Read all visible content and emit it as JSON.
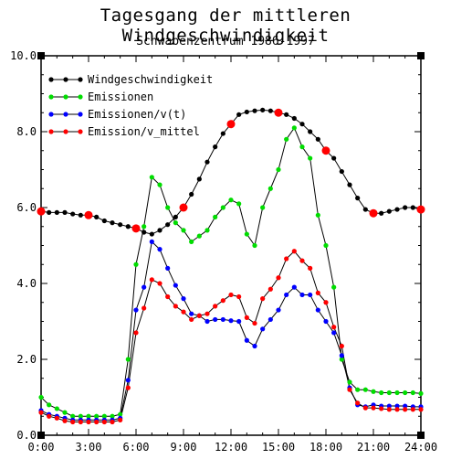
{
  "chart_data": {
    "type": "line",
    "title": "Tagesgang der mittleren Windgeschwindigkeit",
    "subtitle": "Schwabenzentrum 1986-1997",
    "xlabel": "",
    "ylabel": "",
    "xlim": [
      0,
      24
    ],
    "ylim": [
      0,
      10
    ],
    "x_ticks": [
      "0:00",
      "3:00",
      "6:00",
      "9:00",
      "12:00",
      "15:00",
      "18:00",
      "21:00",
      "24:00"
    ],
    "y_ticks": [
      "0.0",
      "2.0",
      "4.0",
      "6.0",
      "8.0",
      "10.0"
    ],
    "grid": false,
    "legend_position": "top-left",
    "x": [
      0,
      0.5,
      1,
      1.5,
      2,
      2.5,
      3,
      3.5,
      4,
      4.5,
      5,
      5.5,
      6,
      6.5,
      7,
      7.5,
      8,
      8.5,
      9,
      9.5,
      10,
      10.5,
      11,
      11.5,
      12,
      12.5,
      13,
      13.5,
      14,
      14.5,
      15,
      15.5,
      16,
      16.5,
      17,
      17.5,
      18,
      18.5,
      19,
      19.5,
      20,
      20.5,
      21,
      21.5,
      22,
      22.5,
      23,
      23.5,
      24
    ],
    "series": [
      {
        "name": "Windgeschwindigkeit",
        "color": "#000000",
        "values": [
          5.9,
          5.87,
          5.87,
          5.87,
          5.83,
          5.8,
          5.8,
          5.75,
          5.65,
          5.6,
          5.55,
          5.5,
          5.45,
          5.35,
          5.3,
          5.4,
          5.55,
          5.75,
          6.0,
          6.35,
          6.75,
          7.2,
          7.6,
          7.95,
          8.2,
          8.45,
          8.52,
          8.55,
          8.57,
          8.55,
          8.5,
          8.45,
          8.35,
          8.2,
          8.0,
          7.8,
          7.5,
          7.3,
          6.95,
          6.6,
          6.25,
          5.95,
          5.85,
          5.85,
          5.9,
          5.95,
          6.0,
          6.0,
          5.95
        ]
      },
      {
        "name": "Emissionen",
        "color": "#00dd00",
        "values": [
          1.0,
          0.8,
          0.7,
          0.6,
          0.5,
          0.5,
          0.5,
          0.5,
          0.5,
          0.5,
          0.55,
          2.0,
          4.5,
          5.5,
          6.8,
          6.6,
          6.0,
          5.6,
          5.4,
          5.1,
          5.25,
          5.4,
          5.75,
          6.0,
          6.2,
          6.1,
          5.3,
          5.0,
          6.0,
          6.5,
          7.0,
          7.8,
          8.1,
          7.6,
          7.3,
          5.8,
          5.0,
          3.9,
          2.0,
          1.4,
          1.2,
          1.2,
          1.15,
          1.12,
          1.12,
          1.12,
          1.12,
          1.12,
          1.1
        ]
      },
      {
        "name": "Emissionen/v(t)",
        "color": "#0000ff",
        "values": [
          0.65,
          0.55,
          0.5,
          0.45,
          0.4,
          0.4,
          0.4,
          0.4,
          0.4,
          0.4,
          0.45,
          1.45,
          3.3,
          3.9,
          5.1,
          4.9,
          4.4,
          3.95,
          3.6,
          3.2,
          3.15,
          3.0,
          3.05,
          3.05,
          3.02,
          3.0,
          2.5,
          2.35,
          2.8,
          3.05,
          3.3,
          3.7,
          3.9,
          3.7,
          3.7,
          3.3,
          3.0,
          2.7,
          2.1,
          1.25,
          0.8,
          0.75,
          0.8,
          0.77,
          0.77,
          0.77,
          0.77,
          0.75,
          0.75
        ]
      },
      {
        "name": "Emission/v_mittel",
        "color": "#ff0000",
        "values": [
          0.6,
          0.5,
          0.45,
          0.38,
          0.35,
          0.35,
          0.35,
          0.35,
          0.35,
          0.35,
          0.4,
          1.25,
          2.7,
          3.35,
          4.1,
          4.0,
          3.65,
          3.4,
          3.25,
          3.05,
          3.15,
          3.2,
          3.4,
          3.55,
          3.7,
          3.65,
          3.1,
          2.95,
          3.6,
          3.85,
          4.15,
          4.65,
          4.85,
          4.6,
          4.4,
          3.75,
          3.5,
          2.85,
          2.35,
          1.2,
          0.85,
          0.72,
          0.72,
          0.7,
          0.68,
          0.68,
          0.68,
          0.68,
          0.68
        ]
      }
    ],
    "big_markers": {
      "series": "Windgeschwindigkeit",
      "color": "#ff0000",
      "x": [
        0,
        3,
        6,
        9,
        12,
        15,
        18,
        21,
        24
      ],
      "values": [
        5.9,
        5.8,
        5.45,
        6.0,
        8.2,
        8.5,
        7.5,
        5.85,
        5.95
      ]
    }
  }
}
